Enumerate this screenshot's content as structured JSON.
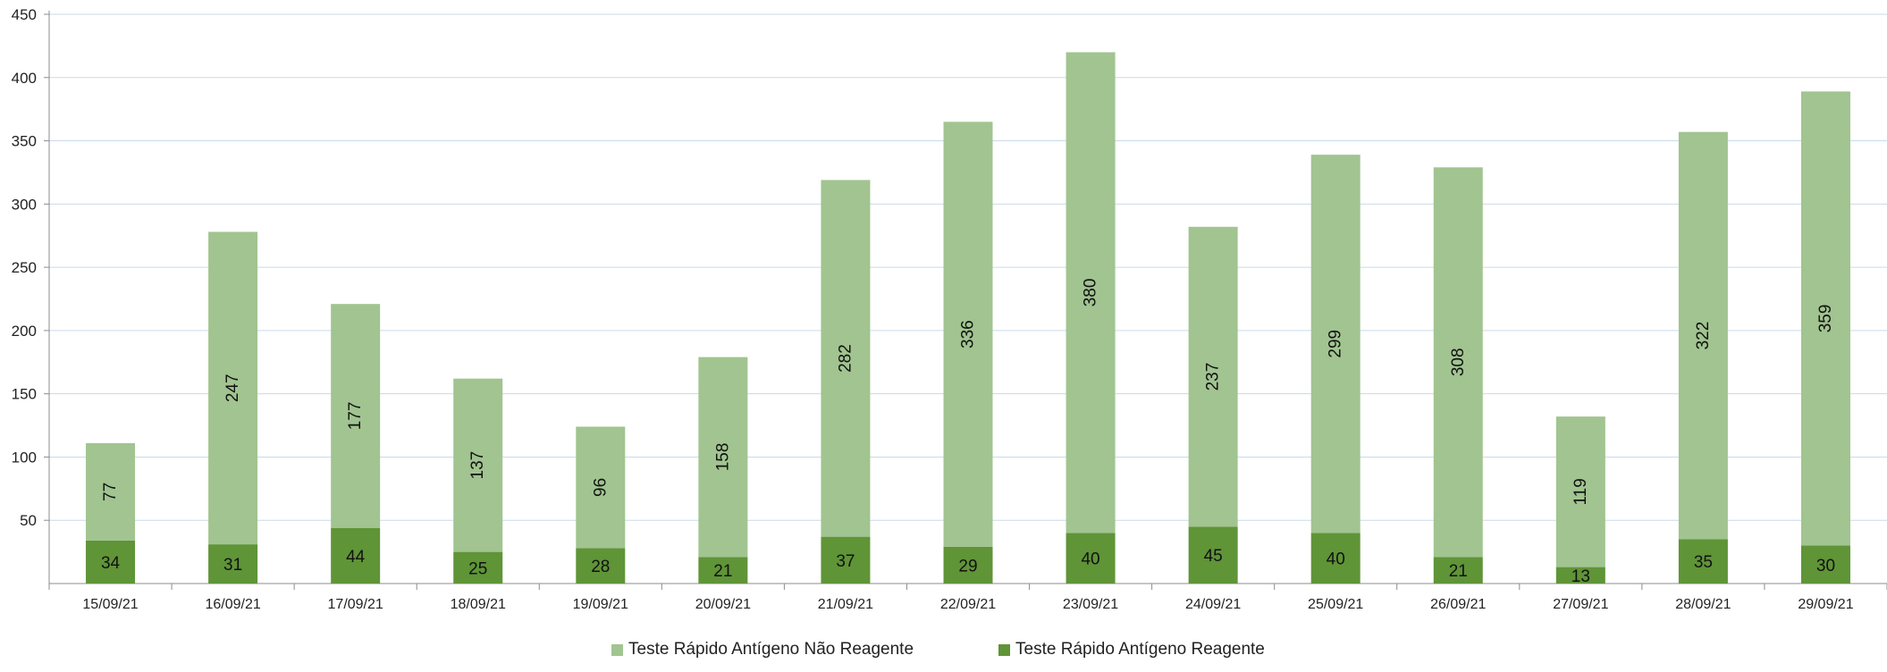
{
  "chart_data": {
    "type": "bar",
    "stacked": true,
    "categories": [
      "15/09/21",
      "16/09/21",
      "17/09/21",
      "18/09/21",
      "19/09/21",
      "20/09/21",
      "21/09/21",
      "22/09/21",
      "23/09/21",
      "24/09/21",
      "25/09/21",
      "26/09/21",
      "27/09/21",
      "28/09/21",
      "29/09/21"
    ],
    "series": [
      {
        "name": "Teste Rápido Antígeno Reagente",
        "color": "#5f9437",
        "values": [
          34,
          31,
          44,
          25,
          28,
          21,
          37,
          29,
          40,
          45,
          40,
          21,
          13,
          35,
          30
        ]
      },
      {
        "name": "Teste Rápido Antígeno Não Reagente",
        "color": "#a1c490",
        "values": [
          77,
          247,
          177,
          137,
          96,
          158,
          282,
          336,
          380,
          237,
          299,
          308,
          119,
          322,
          359
        ]
      }
    ],
    "yticks": [
      "450",
      "400",
      "350",
      "300",
      "250",
      "200",
      "150",
      "100",
      "50"
    ],
    "ylim": [
      0,
      450
    ],
    "grid": true,
    "legend_position": "bottom",
    "title": "",
    "xlabel": "",
    "ylabel": ""
  }
}
